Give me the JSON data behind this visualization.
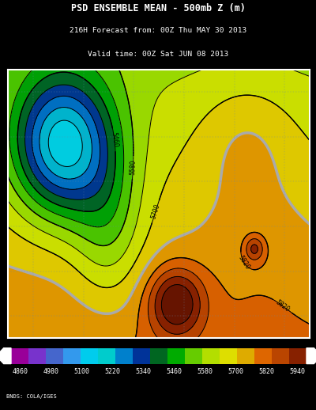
{
  "title_line1": "PSD ENSEMBLE MEAN - 500mb Z (m)",
  "title_line2": "216H Forecast from: 00Z Thu MAY 30 2013",
  "title_line3": "Valid time: 00Z Sat JUN 08 2013",
  "colorbar_values": [
    4860,
    4980,
    5100,
    5220,
    5340,
    5460,
    5580,
    5700,
    5820,
    5940
  ],
  "credit": "BNDS: COLA/IGES",
  "cb_colors": [
    "#9900cc",
    "#7700bb",
    "#4455cc",
    "#2299dd",
    "#00cccc",
    "#00aacc",
    "#0077cc",
    "#005599",
    "#007700",
    "#009900",
    "#44bb00",
    "#aadd00",
    "#dddd00",
    "#ddaa00",
    "#dd7700",
    "#bb4400",
    "#882200",
    "#661100"
  ],
  "fill_colors": [
    "#9900cc",
    "#7700bb",
    "#4455cc",
    "#2299dd",
    "#00cccc",
    "#00aacc",
    "#0077cc",
    "#005599",
    "#007700",
    "#009900",
    "#44bb00",
    "#aadd00",
    "#dddd00",
    "#ddaa00",
    "#dd7700",
    "#bb4400",
    "#882200"
  ],
  "background_color": "#000000"
}
